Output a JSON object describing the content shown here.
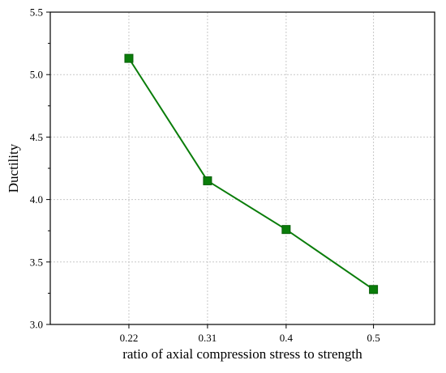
{
  "chart_data": {
    "type": "line",
    "title": "",
    "xlabel": "ratio of axial compression stress to strength",
    "ylabel": "Ductility",
    "categories": [
      "0.22",
      "0.31",
      "0.4",
      "0.5"
    ],
    "x": [
      0.22,
      0.31,
      0.4,
      0.5
    ],
    "series": [
      {
        "values": [
          5.13,
          4.15,
          3.76,
          3.28
        ],
        "color": "#0a7d0a",
        "marker": "square"
      }
    ],
    "xlim": [
      0.13,
      0.57
    ],
    "ylim": [
      3.0,
      5.5
    ],
    "yticks": [
      "3.0",
      "3.5",
      "4.0",
      "4.5",
      "5.0",
      "5.5"
    ],
    "grid": true,
    "legend": "none"
  }
}
